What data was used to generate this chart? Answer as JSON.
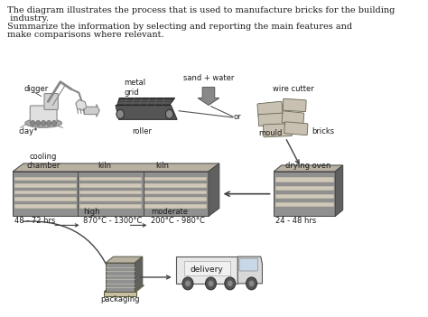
{
  "title_text1": "The diagram illustrates the process that is used to manufacture bricks for the building",
  "title_text2": " industry.",
  "title_text3": "Summarize the information by selecting and reporting the main features and",
  "title_text4": "make comparisons where relevant.",
  "bg_color": "#ffffff",
  "text_color": "#1a1a1a",
  "labels": {
    "digger": "digger",
    "clay": "clay*",
    "metal_grid": "metal\ngrid",
    "sand_water": "sand + water",
    "roller": "roller",
    "wire_cutter": "wire cutter",
    "bricks": "bricks",
    "mould": "mould",
    "or": "or",
    "cooling_chamber": "cooling\nchamber",
    "kiln1": "kiln",
    "kiln2": "kiln",
    "drying_oven": "drying oven",
    "hrs1": "48 - 72 hrs",
    "high": "high\n870°C - 1300°C",
    "moderate": "moderate\n200°C - 980°C",
    "hrs2": "24 - 48 hrs",
    "packaging": "packaging",
    "delivery": "delivery"
  },
  "kiln_color": "#a09080",
  "kiln_top_color": "#c8bdb0",
  "kiln_side_color": "#706050",
  "kiln_shelf_color": "#d8cfc0",
  "drying_color": "#a09080",
  "brick_color": "#b8a898",
  "figsize": [
    4.74,
    3.51
  ],
  "dpi": 100
}
